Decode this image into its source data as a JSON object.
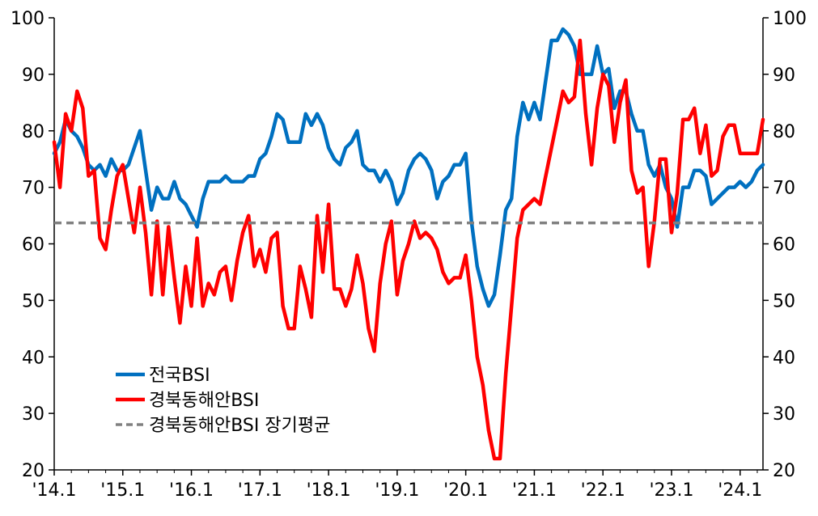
{
  "chart_data": {
    "type": "line",
    "title": "",
    "xlabel": "",
    "ylabel": "",
    "ylim": [
      20,
      100
    ],
    "yticks": [
      20,
      30,
      40,
      50,
      60,
      70,
      80,
      90,
      100
    ],
    "y_axis_sides": "both",
    "x_tick_labels": [
      "'14.1",
      "'15.1",
      "'16.1",
      "'17.1",
      "'18.1",
      "'19.1",
      "'20.1",
      "'21.1",
      "'22.1",
      "'23.1",
      "'24.1"
    ],
    "x_start": "2014-01",
    "x_end": "2024-06",
    "grid": false,
    "legend_position": "bottom-left",
    "series": [
      {
        "name": "전국BSI",
        "color": "#0070c0",
        "values": [
          76,
          78,
          82,
          80,
          79,
          77,
          74,
          73,
          74,
          72,
          75,
          73,
          73,
          74,
          77,
          80,
          73,
          66,
          70,
          68,
          68,
          71,
          68,
          67,
          65,
          63,
          68,
          71,
          71,
          71,
          72,
          71,
          71,
          71,
          72,
          72,
          75,
          76,
          79,
          83,
          82,
          78,
          78,
          78,
          83,
          81,
          83,
          81,
          77,
          75,
          74,
          77,
          78,
          80,
          74,
          73,
          73,
          71,
          73,
          71,
          67,
          69,
          73,
          75,
          76,
          75,
          73,
          68,
          71,
          72,
          74,
          74,
          76,
          64,
          56,
          52,
          49,
          51,
          58,
          66,
          68,
          79,
          85,
          82,
          85,
          82,
          89,
          96,
          96,
          98,
          97,
          95,
          90,
          90,
          90,
          95,
          90,
          91,
          84,
          87,
          87,
          83,
          80,
          80,
          74,
          72,
          74,
          70,
          68,
          63,
          70,
          70,
          73,
          73,
          72,
          67,
          68,
          69,
          70,
          70,
          71,
          70,
          71,
          73,
          74
        ]
      },
      {
        "name": "경북동해안BSI",
        "color": "#ff0000",
        "values": [
          78,
          70,
          83,
          80,
          87,
          84,
          72,
          73,
          61,
          59,
          66,
          72,
          74,
          68,
          62,
          70,
          62,
          51,
          64,
          51,
          63,
          54,
          46,
          56,
          49,
          61,
          49,
          53,
          51,
          55,
          56,
          50,
          57,
          62,
          65,
          56,
          59,
          55,
          61,
          62,
          49,
          45,
          45,
          56,
          52,
          47,
          65,
          55,
          67,
          52,
          52,
          49,
          52,
          58,
          53,
          45,
          41,
          53,
          60,
          64,
          51,
          57,
          60,
          64,
          61,
          62,
          61,
          59,
          55,
          53,
          54,
          54,
          58,
          50,
          40,
          35,
          27,
          22,
          22,
          37,
          49,
          61,
          66,
          67,
          68,
          67,
          72,
          77,
          82,
          87,
          85,
          86,
          96,
          83,
          74,
          84,
          90,
          88,
          78,
          85,
          89,
          73,
          69,
          70,
          56,
          64,
          75,
          75,
          62,
          69,
          82,
          82,
          84,
          76,
          81,
          72,
          73,
          79,
          81,
          81,
          76,
          76,
          76,
          76,
          82
        ]
      },
      {
        "name": "경북동해안BSI 장기평균",
        "color": "#808080",
        "style": "dashed",
        "value": 63.7
      }
    ]
  }
}
